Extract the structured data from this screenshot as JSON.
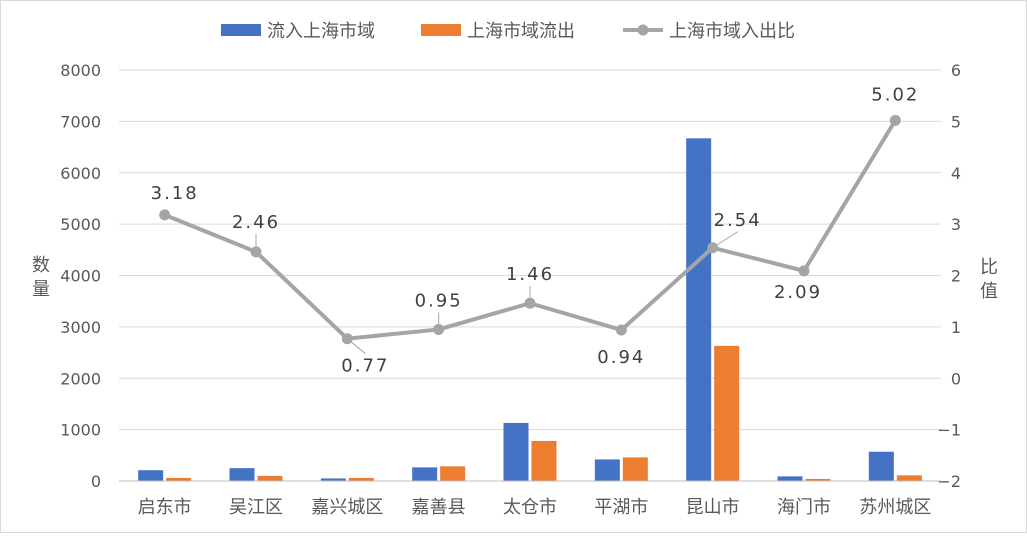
{
  "chart_data": {
    "type": "bar+line",
    "categories": [
      "启东市",
      "吴江区",
      "嘉兴城区",
      "嘉善县",
      "太仓市",
      "平湖市",
      "昆山市",
      "海门市",
      "苏州城区"
    ],
    "series": [
      {
        "name": "流入上海市域",
        "type": "bar",
        "axis": "left",
        "color": "#4472c4",
        "values": [
          210,
          250,
          50,
          265,
          1130,
          420,
          6670,
          90,
          570
        ]
      },
      {
        "name": "上海市域流出",
        "type": "bar",
        "axis": "left",
        "color": "#ed7d31",
        "values": [
          60,
          100,
          60,
          285,
          780,
          460,
          2630,
          40,
          110
        ]
      },
      {
        "name": "上海市域入出比",
        "type": "line",
        "axis": "right",
        "color": "#a5a5a5",
        "values": [
          3.18,
          2.46,
          0.77,
          0.95,
          1.46,
          0.94,
          2.54,
          2.09,
          5.02
        ],
        "labels": [
          "3.18",
          "2.46",
          "0.77",
          "0.95",
          "1.46",
          "0.94",
          "2.54",
          "2.09",
          "5.02"
        ]
      }
    ],
    "y_left": {
      "label": "数量",
      "min": 0,
      "max": 8000,
      "ticks": [
        "0",
        "1000",
        "2000",
        "3000",
        "4000",
        "5000",
        "6000",
        "7000",
        "8000"
      ]
    },
    "y_right": {
      "label": "比值",
      "min": -2,
      "max": 6,
      "ticks": [
        "−2",
        "−1",
        "0",
        "1",
        "2",
        "3",
        "4",
        "5",
        "6"
      ]
    },
    "legend_position": "top",
    "grid": true
  }
}
